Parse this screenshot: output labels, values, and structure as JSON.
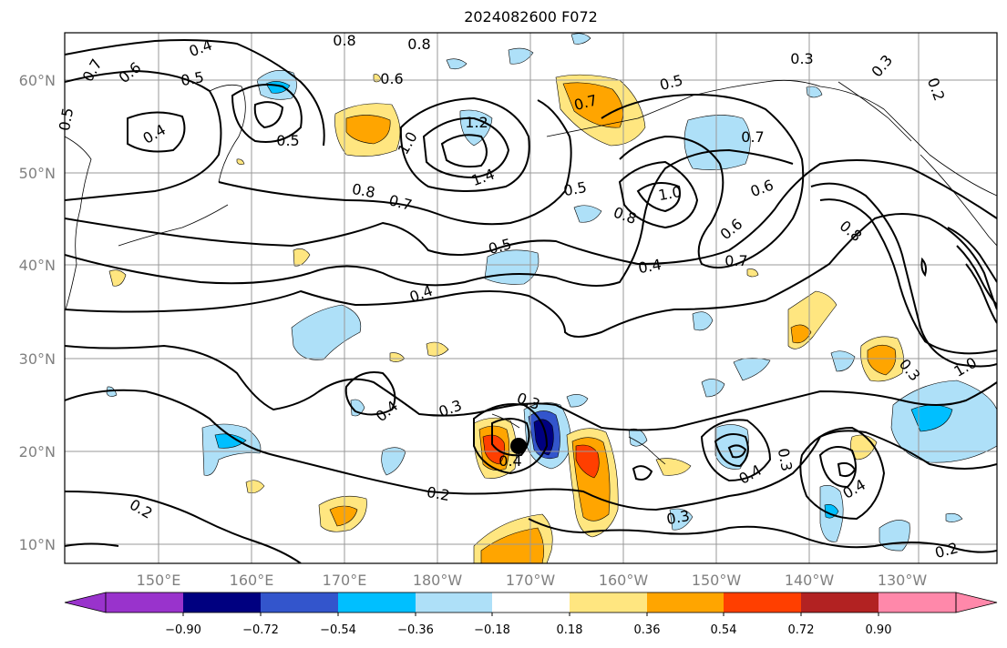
{
  "title": "2024082600 F072",
  "lat_labels": [
    "60°N",
    "50°N",
    "40°N",
    "30°N",
    "20°N",
    "10°N"
  ],
  "lon_labels": [
    "150°E",
    "160°E",
    "170°E",
    "180°W",
    "170°W",
    "160°W",
    "150°W",
    "140°W",
    "130°W"
  ],
  "contour_labels": [
    "0.4",
    "0.8",
    "0.8",
    "0.7",
    "0.6",
    "0.5",
    "0.6",
    "0.5",
    "0.4",
    "0.5",
    "1.2",
    "1.0",
    "1.4",
    "0.8",
    "0.7",
    "0.5",
    "0.7",
    "0.5",
    "0.3",
    "0.3",
    "0.2",
    "0.7",
    "1.0",
    "0.6",
    "0.8",
    "0.8",
    "0.6",
    "0.7",
    "0.4",
    "0.5",
    "0.4",
    "0.4",
    "0.3",
    "0.3",
    "0.4",
    "0.2",
    "0.3",
    "0.4",
    "0.3",
    "0.4",
    "1.0",
    "0.2",
    "0.2",
    "0.3"
  ],
  "colorbar": {
    "ticks": [
      "−0.90",
      "−0.72",
      "−0.54",
      "−0.36",
      "−0.18",
      "0.18",
      "0.36",
      "0.54",
      "0.72",
      "0.90"
    ],
    "colors": [
      "#9933cc",
      "#000080",
      "#3355cc",
      "#00bfff",
      "#aee0f8",
      "#ffffff",
      "#ffe680",
      "#ffa500",
      "#ff3f00",
      "#b22222",
      "#ff88aa"
    ]
  }
}
